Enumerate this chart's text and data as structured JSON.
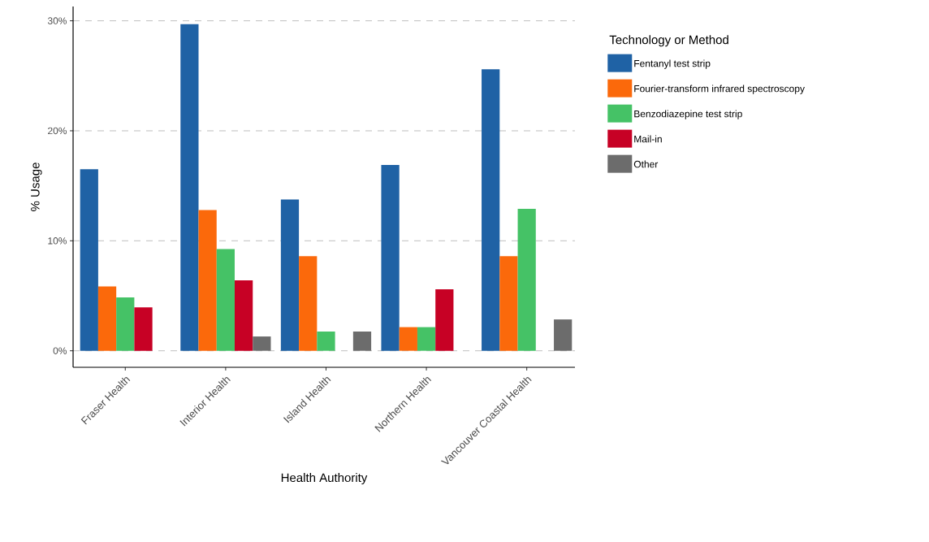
{
  "chart_data": {
    "type": "bar",
    "xlabel": "Health Authority",
    "ylabel": "% Usage",
    "legend_title": "Technology or Method",
    "categories": [
      "Fraser Health",
      "Interior Health",
      "Island Health",
      "Northern Health",
      "Vancouver Coastal Health"
    ],
    "series": [
      {
        "name": "Fentanyl test strip",
        "color": "#1f62a5",
        "values": [
          16.5,
          29.7,
          13.75,
          16.9,
          25.6
        ]
      },
      {
        "name": "Fourier-transform infrared spectroscopy",
        "color": "#fb690b",
        "values": [
          5.85,
          12.8,
          8.6,
          2.15,
          8.6
        ]
      },
      {
        "name": "Benzodiazepine test strip",
        "color": "#45c266",
        "values": [
          4.85,
          9.25,
          1.75,
          2.15,
          12.9
        ]
      },
      {
        "name": "Mail-in",
        "color": "#c70125",
        "values": [
          3.95,
          6.4,
          null,
          5.6,
          null
        ]
      },
      {
        "name": "Other",
        "color": "#6c6c6c",
        "values": [
          null,
          1.3,
          1.75,
          null,
          2.85
        ]
      }
    ],
    "ylim": [
      -1.5,
      31.3
    ],
    "yticks": [
      {
        "value": 0,
        "label": "0%"
      },
      {
        "value": 10,
        "label": "10%"
      },
      {
        "value": 20,
        "label": "20%"
      },
      {
        "value": 30,
        "label": "30%"
      }
    ],
    "grid": "y",
    "legend": "right"
  }
}
